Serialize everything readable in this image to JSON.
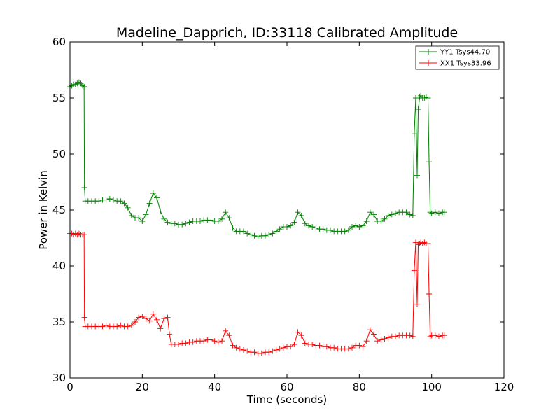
{
  "chart_data": {
    "type": "line",
    "title": "Madeline_Dapprich, ID:33118 Calibrated Amplitude",
    "xlabel": "Time (seconds)",
    "ylabel": "Power in Kelvin",
    "xlim": [
      0,
      120
    ],
    "ylim": [
      30,
      60
    ],
    "xticks": [
      0,
      20,
      40,
      60,
      80,
      100,
      120
    ],
    "yticks": [
      30,
      35,
      40,
      45,
      50,
      55,
      60
    ],
    "x_tick_labels": [
      "0",
      "20",
      "40",
      "60",
      "80",
      "100",
      "120"
    ],
    "y_tick_labels": [
      "30",
      "35",
      "40",
      "45",
      "50",
      "55",
      "60"
    ],
    "grid": false,
    "legend_position": "top-right",
    "marker": "+",
    "series": [
      {
        "name": "YY1 Tsys44.70",
        "color": "#008000",
        "points": [
          [
            0,
            56.0
          ],
          [
            0.5,
            56.1
          ],
          [
            1,
            56.2
          ],
          [
            1.5,
            56.2
          ],
          [
            2,
            56.3
          ],
          [
            2.5,
            56.4
          ],
          [
            3,
            56.3
          ],
          [
            3.5,
            56.1
          ],
          [
            3.9,
            56.0
          ],
          [
            4.0,
            47.0
          ],
          [
            4.2,
            45.8
          ],
          [
            5,
            45.8
          ],
          [
            6,
            45.8
          ],
          [
            7,
            45.8
          ],
          [
            8,
            45.8
          ],
          [
            9,
            45.9
          ],
          [
            10,
            45.9
          ],
          [
            11,
            46.0
          ],
          [
            12,
            45.9
          ],
          [
            13,
            45.8
          ],
          [
            14,
            45.8
          ],
          [
            15,
            45.6
          ],
          [
            16,
            45.2
          ],
          [
            17,
            44.5
          ],
          [
            18,
            44.3
          ],
          [
            19,
            44.3
          ],
          [
            20,
            44.0
          ],
          [
            21,
            44.6
          ],
          [
            22,
            45.6
          ],
          [
            23,
            46.5
          ],
          [
            24,
            46.1
          ],
          [
            25,
            44.9
          ],
          [
            26,
            44.2
          ],
          [
            27,
            43.9
          ],
          [
            28,
            43.8
          ],
          [
            29,
            43.8
          ],
          [
            30,
            43.7
          ],
          [
            31,
            43.7
          ],
          [
            32,
            43.8
          ],
          [
            33,
            43.9
          ],
          [
            34,
            44.0
          ],
          [
            35,
            44.0
          ],
          [
            36,
            44.0
          ],
          [
            37,
            44.1
          ],
          [
            38,
            44.1
          ],
          [
            39,
            44.1
          ],
          [
            40,
            44.0
          ],
          [
            41,
            44.0
          ],
          [
            42,
            44.2
          ],
          [
            43,
            44.8
          ],
          [
            44,
            44.3
          ],
          [
            45,
            43.4
          ],
          [
            46,
            43.1
          ],
          [
            47,
            43.1
          ],
          [
            48,
            43.1
          ],
          [
            49,
            42.9
          ],
          [
            50,
            42.8
          ],
          [
            51,
            42.7
          ],
          [
            52,
            42.6
          ],
          [
            53,
            42.7
          ],
          [
            54,
            42.7
          ],
          [
            55,
            42.8
          ],
          [
            56,
            42.9
          ],
          [
            57,
            43.1
          ],
          [
            58,
            43.3
          ],
          [
            59,
            43.5
          ],
          [
            60,
            43.5
          ],
          [
            61,
            43.6
          ],
          [
            62,
            43.9
          ],
          [
            63,
            44.8
          ],
          [
            64,
            44.5
          ],
          [
            65,
            43.8
          ],
          [
            66,
            43.6
          ],
          [
            67,
            43.5
          ],
          [
            68,
            43.4
          ],
          [
            69,
            43.3
          ],
          [
            70,
            43.3
          ],
          [
            71,
            43.2
          ],
          [
            72,
            43.2
          ],
          [
            73,
            43.1
          ],
          [
            74,
            43.1
          ],
          [
            75,
            43.1
          ],
          [
            76,
            43.1
          ],
          [
            77,
            43.2
          ],
          [
            78,
            43.5
          ],
          [
            79,
            43.6
          ],
          [
            80,
            43.5
          ],
          [
            81,
            43.6
          ],
          [
            82,
            44.0
          ],
          [
            83,
            44.8
          ],
          [
            84,
            44.6
          ],
          [
            85,
            44.0
          ],
          [
            86,
            44.0
          ],
          [
            87,
            44.2
          ],
          [
            88,
            44.5
          ],
          [
            89,
            44.6
          ],
          [
            90,
            44.7
          ],
          [
            91,
            44.8
          ],
          [
            92,
            44.8
          ],
          [
            93,
            44.8
          ],
          [
            94,
            44.6
          ],
          [
            94.8,
            44.5
          ],
          [
            95.2,
            51.8
          ],
          [
            95.6,
            55.0
          ],
          [
            96.0,
            48.1
          ],
          [
            96.3,
            54.0
          ],
          [
            96.7,
            55.1
          ],
          [
            97,
            55.2
          ],
          [
            97.5,
            55.0
          ],
          [
            98,
            55.0
          ],
          [
            98.5,
            55.1
          ],
          [
            99,
            55.0
          ],
          [
            99.3,
            49.3
          ],
          [
            99.6,
            44.8
          ],
          [
            100,
            44.7
          ],
          [
            101,
            44.8
          ],
          [
            102,
            44.7
          ],
          [
            103,
            44.8
          ],
          [
            103.5,
            44.8
          ]
        ]
      },
      {
        "name": "XX1 Tsys33.96",
        "color": "#ff0000",
        "points": [
          [
            0,
            42.9
          ],
          [
            0.5,
            42.9
          ],
          [
            1,
            42.8
          ],
          [
            1.5,
            42.9
          ],
          [
            2,
            42.8
          ],
          [
            2.5,
            42.9
          ],
          [
            3,
            42.8
          ],
          [
            3.5,
            42.8
          ],
          [
            3.9,
            42.8
          ],
          [
            4.0,
            35.4
          ],
          [
            4.2,
            34.6
          ],
          [
            5,
            34.6
          ],
          [
            6,
            34.6
          ],
          [
            7,
            34.6
          ],
          [
            8,
            34.6
          ],
          [
            9,
            34.6
          ],
          [
            10,
            34.7
          ],
          [
            11,
            34.6
          ],
          [
            12,
            34.6
          ],
          [
            13,
            34.6
          ],
          [
            14,
            34.7
          ],
          [
            15,
            34.6
          ],
          [
            16,
            34.6
          ],
          [
            17,
            34.7
          ],
          [
            18,
            35.0
          ],
          [
            19,
            35.4
          ],
          [
            20,
            35.5
          ],
          [
            21,
            35.3
          ],
          [
            22,
            35.1
          ],
          [
            23,
            35.7
          ],
          [
            24,
            35.2
          ],
          [
            25,
            34.4
          ],
          [
            26,
            35.3
          ],
          [
            27,
            35.4
          ],
          [
            27.5,
            33.9
          ],
          [
            28,
            33.0
          ],
          [
            29,
            33.0
          ],
          [
            30,
            33.0
          ],
          [
            31,
            33.1
          ],
          [
            32,
            33.1
          ],
          [
            33,
            33.2
          ],
          [
            34,
            33.2
          ],
          [
            35,
            33.3
          ],
          [
            36,
            33.3
          ],
          [
            37,
            33.3
          ],
          [
            38,
            33.4
          ],
          [
            39,
            33.4
          ],
          [
            40,
            33.3
          ],
          [
            41,
            33.2
          ],
          [
            42,
            33.3
          ],
          [
            43,
            34.2
          ],
          [
            44,
            33.8
          ],
          [
            45,
            32.9
          ],
          [
            46,
            32.7
          ],
          [
            47,
            32.6
          ],
          [
            48,
            32.5
          ],
          [
            49,
            32.4
          ],
          [
            50,
            32.3
          ],
          [
            51,
            32.3
          ],
          [
            52,
            32.2
          ],
          [
            53,
            32.2
          ],
          [
            54,
            32.3
          ],
          [
            55,
            32.3
          ],
          [
            56,
            32.4
          ],
          [
            57,
            32.5
          ],
          [
            58,
            32.6
          ],
          [
            59,
            32.7
          ],
          [
            60,
            32.8
          ],
          [
            61,
            32.8
          ],
          [
            62,
            33.0
          ],
          [
            63,
            34.1
          ],
          [
            64,
            33.8
          ],
          [
            65,
            33.1
          ],
          [
            66,
            33.0
          ],
          [
            67,
            33.0
          ],
          [
            68,
            32.9
          ],
          [
            69,
            32.9
          ],
          [
            70,
            32.8
          ],
          [
            71,
            32.8
          ],
          [
            72,
            32.7
          ],
          [
            73,
            32.7
          ],
          [
            74,
            32.6
          ],
          [
            75,
            32.6
          ],
          [
            76,
            32.6
          ],
          [
            77,
            32.6
          ],
          [
            78,
            32.7
          ],
          [
            79,
            32.9
          ],
          [
            80,
            32.9
          ],
          [
            81,
            32.8
          ],
          [
            82,
            33.3
          ],
          [
            83,
            34.3
          ],
          [
            84,
            33.9
          ],
          [
            85,
            33.3
          ],
          [
            86,
            33.4
          ],
          [
            87,
            33.5
          ],
          [
            88,
            33.6
          ],
          [
            89,
            33.7
          ],
          [
            90,
            33.7
          ],
          [
            91,
            33.8
          ],
          [
            92,
            33.8
          ],
          [
            93,
            33.8
          ],
          [
            94,
            33.8
          ],
          [
            94.8,
            33.7
          ],
          [
            95.2,
            39.6
          ],
          [
            95.6,
            42.1
          ],
          [
            96.0,
            36.6
          ],
          [
            96.3,
            41.9
          ],
          [
            96.7,
            42.0
          ],
          [
            97,
            42.1
          ],
          [
            97.5,
            42.0
          ],
          [
            98,
            42.1
          ],
          [
            98.5,
            42.0
          ],
          [
            99,
            42.0
          ],
          [
            99.3,
            37.5
          ],
          [
            99.6,
            33.7
          ],
          [
            100,
            33.8
          ],
          [
            101,
            33.8
          ],
          [
            102,
            33.7
          ],
          [
            103,
            33.8
          ],
          [
            103.5,
            33.8
          ]
        ]
      }
    ]
  }
}
